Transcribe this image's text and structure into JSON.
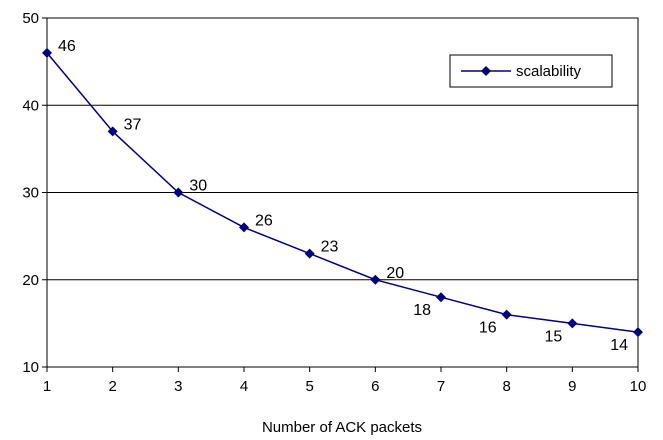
{
  "chart_data": {
    "type": "line",
    "title": "",
    "xlabel": "Number of ACK packets",
    "ylabel": "",
    "x": [
      1,
      2,
      3,
      4,
      5,
      6,
      7,
      8,
      9,
      10
    ],
    "xlim": [
      1,
      10
    ],
    "ylim": [
      10,
      50
    ],
    "yticks": [
      10,
      20,
      30,
      40,
      50
    ],
    "grid": "horizontal",
    "legend_position": "top-right",
    "series": [
      {
        "name": "scalability",
        "values": [
          46,
          37,
          30,
          26,
          23,
          20,
          18,
          16,
          15,
          14
        ],
        "color": "#000080",
        "marker": "diamond"
      }
    ]
  }
}
